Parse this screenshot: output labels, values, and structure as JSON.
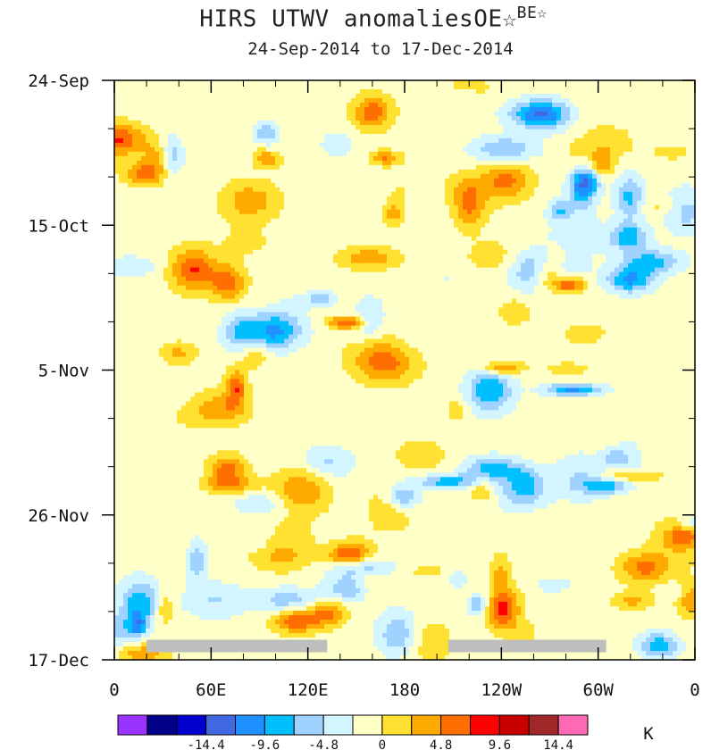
{
  "chart_data": {
    "type": "heatmap",
    "title": "HIRS UTWV anomaliesOE☆",
    "title_superscript": "BE☆",
    "subtitle": "24-Sep-2014 to 17-Dec-2014",
    "x_tick_labels": [
      "0",
      "60E",
      "120E",
      "180",
      "120W",
      "60W",
      "0"
    ],
    "x_range_deg": [
      0,
      360
    ],
    "y_tick_labels": [
      "24-Sep",
      "15-Oct",
      "5-Nov",
      "26-Nov",
      "17-Dec"
    ],
    "y_range_days": [
      0,
      84
    ],
    "units_label": "K",
    "colorbar_labels": [
      "-14.4",
      "-9.6",
      "-4.8",
      "0",
      "4.8",
      "9.6",
      "14.4"
    ],
    "colorbar_levels": [
      -19.2,
      -16.8,
      -14.4,
      -12,
      -9.6,
      -7.2,
      -4.8,
      -2.4,
      0,
      2.4,
      4.8,
      7.2,
      9.6,
      12,
      14.4,
      16.8,
      19.2
    ],
    "colorbar_colors": [
      "#9933ff",
      "#00008b",
      "#0000cd",
      "#4169e1",
      "#1e90ff",
      "#00bfff",
      "#a0d2ff",
      "#d2f5ff",
      "#ffffc8",
      "#ffe132",
      "#ffaa00",
      "#ff6e00",
      "#ff0000",
      "#c80000",
      "#a02828",
      "#ff69b4"
    ],
    "missing_data_bars": [
      {
        "lon_start": 20,
        "lon_end": 132,
        "day": 82
      },
      {
        "lon_start": 207,
        "lon_end": 305,
        "day": 82
      }
    ]
  }
}
